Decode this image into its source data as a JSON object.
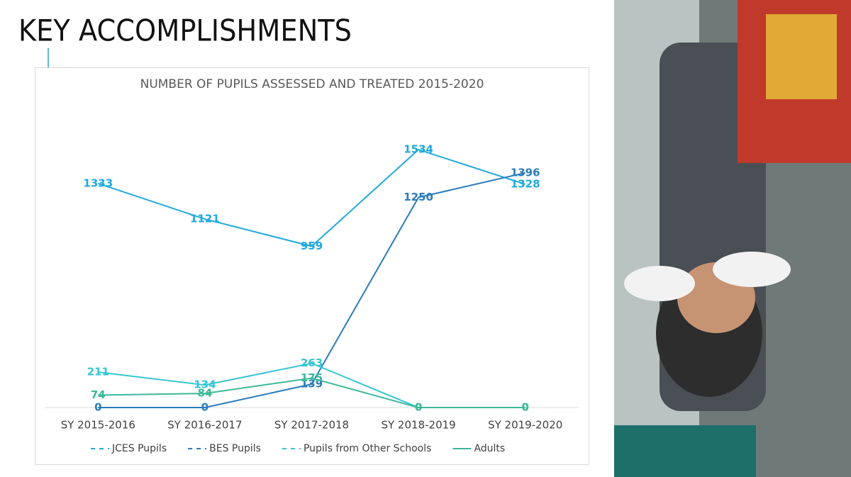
{
  "slide_title": "KEY ACCOMPLISHMENTS",
  "chart_data": {
    "type": "line",
    "title": "NUMBER OF PUPILS ASSESSED AND TREATED 2015-2020",
    "categories": [
      "SY 2015-2016",
      "SY 2016-2017",
      "SY 2017-2018",
      "SY 2018-2019",
      "SY 2019-2020"
    ],
    "series": [
      {
        "name": "JCES Pupils",
        "color": "#1ea9dc",
        "dashed": true,
        "values": [
          1333,
          1121,
          959,
          1534,
          1328
        ]
      },
      {
        "name": "BES Pupils",
        "color": "#2b7bbb",
        "dashed": true,
        "values": [
          0,
          0,
          139,
          1250,
          1396
        ]
      },
      {
        "name": "Pupils from Other Schools",
        "color": "#35c6d3",
        "dashed": true,
        "values": [
          211,
          134,
          263,
          0,
          0
        ]
      },
      {
        "name": "Adults",
        "color": "#3cb89a",
        "dashed": false,
        "values": [
          74,
          84,
          175,
          0,
          0
        ]
      }
    ],
    "ylim": [
      0,
      1800
    ],
    "data_labels": true,
    "legend": "bottom"
  }
}
